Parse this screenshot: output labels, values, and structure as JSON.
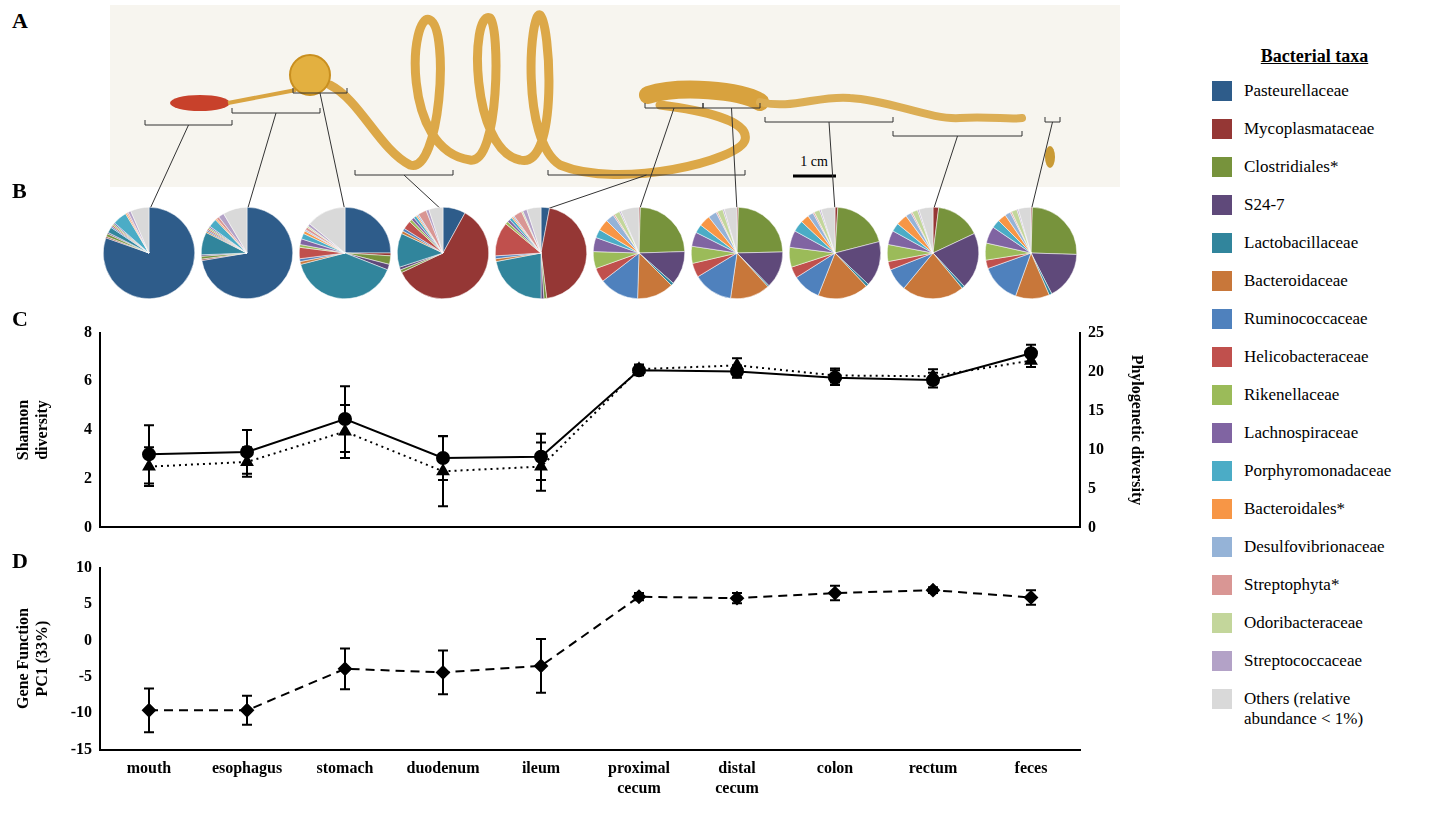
{
  "figure": {
    "panel_labels": [
      "A",
      "B",
      "C",
      "D"
    ],
    "scale_bar": "1 cm"
  },
  "chart_data": [
    {
      "type": "pie",
      "title": "Bacterial taxa",
      "legend": "right",
      "categories": [
        "Pasteurellaceae",
        "Mycoplasmataceae",
        "Clostridiales*",
        "S24-7",
        "Lactobacillaceae",
        "Bacteroidaceae",
        "Ruminococcaceae",
        "Helicobacteraceae",
        "Rikenellaceae",
        "Lachnospiraceae",
        "Porphyromonadaceae",
        "Bacteroidales*",
        "Desulfovibrionaceae",
        "Streptophyta*",
        "Odoribacteraceae",
        "Streptococcaceae",
        "Others (relative abundance < 1%)"
      ],
      "colors": [
        "#2e5c8a",
        "#953735",
        "#77933c",
        "#5f497a",
        "#31859c",
        "#c8773a",
        "#4f81bd",
        "#c0504d",
        "#9bbb59",
        "#8064a2",
        "#4bacc6",
        "#f79646",
        "#95b3d7",
        "#d99694",
        "#c3d69b",
        "#b3a2c7",
        "#d9d9d9"
      ],
      "series": [
        {
          "name": "mouth",
          "values": [
            80,
            0.5,
            1,
            0.5,
            2,
            0,
            0.5,
            0.5,
            0.5,
            0.5,
            5,
            0.5,
            0,
            0.5,
            0,
            1,
            6.5
          ]
        },
        {
          "name": "esophagus",
          "values": [
            72,
            0.5,
            1,
            0.5,
            8,
            0.5,
            0.5,
            0.5,
            0.5,
            0.5,
            3,
            0.5,
            0,
            1,
            0,
            2,
            8.5
          ]
        },
        {
          "name": "stomach",
          "values": [
            25,
            1,
            3,
            2,
            40,
            1,
            1,
            4,
            1,
            2,
            2,
            1,
            0.5,
            1,
            0.5,
            1,
            14
          ]
        },
        {
          "name": "duodenum",
          "values": [
            8,
            60,
            1,
            1,
            12,
            1,
            1,
            3,
            1,
            1,
            1,
            0.5,
            0.5,
            3,
            0,
            1,
            5
          ]
        },
        {
          "name": "ileum",
          "values": [
            3,
            45,
            1,
            1,
            22,
            1,
            1,
            12,
            1,
            1,
            1,
            0.5,
            0.5,
            3,
            0.5,
            1.5,
            5
          ]
        },
        {
          "name": "proximal cecum",
          "values": [
            0,
            0.5,
            24,
            12,
            1,
            13,
            14,
            5,
            6,
            5,
            3,
            4,
            3,
            0.5,
            2,
            0.5,
            6.5
          ]
        },
        {
          "name": "distal cecum",
          "values": [
            0,
            0.5,
            24,
            13,
            0.5,
            14,
            14,
            5,
            6,
            5,
            3,
            4,
            3,
            0.5,
            2,
            0.5,
            4.5
          ]
        },
        {
          "name": "colon",
          "values": [
            0,
            1,
            20,
            16,
            1,
            18,
            10,
            4,
            7,
            6,
            4,
            3,
            2,
            0.5,
            2,
            0.5,
            5
          ]
        },
        {
          "name": "rectum",
          "values": [
            0,
            2,
            16,
            20,
            1,
            22,
            8,
            3,
            6,
            5,
            3,
            4,
            2,
            0.5,
            2,
            0.5,
            5
          ]
        },
        {
          "name": "feces",
          "values": [
            0,
            0.5,
            25,
            17,
            1,
            12,
            14,
            3,
            6,
            6,
            3,
            3,
            2,
            0.5,
            2,
            0.5,
            4.5
          ]
        }
      ]
    },
    {
      "type": "line",
      "grid": false,
      "tick_labels": "y",
      "categories": [
        "mouth",
        "esophagus",
        "stomach",
        "duodenum",
        "ileum",
        "proximal cecum",
        "distal cecum",
        "colon",
        "rectum",
        "feces"
      ],
      "ylim": [
        0,
        8
      ],
      "yticks": [
        0,
        2,
        4,
        6,
        8
      ],
      "y2lim": [
        0,
        25
      ],
      "y2ticks": [
        0,
        5,
        10,
        15,
        20,
        25
      ],
      "series": [
        {
          "name": "Shannon diversity",
          "color": "#000000",
          "marker": "circle",
          "line_style": "solid",
          "values": [
            3.0,
            3.1,
            4.45,
            2.85,
            2.9,
            6.45,
            6.4,
            6.15,
            6.05,
            7.15
          ],
          "errors": [
            1.2,
            0.9,
            1.35,
            0.9,
            0.95,
            0.2,
            0.25,
            0.3,
            0.3,
            0.35
          ]
        },
        {
          "name": "Phylogenetic diversity",
          "axis": "y2",
          "color": "#000000",
          "marker": "triangle",
          "line_style": "dotted",
          "values": [
            7.8,
            8.4,
            12.3,
            7.2,
            7.8,
            20.3,
            20.8,
            19.5,
            19.4,
            21.4
          ],
          "errors": [
            2.5,
            1.9,
            3.4,
            4.5,
            3.1,
            0.6,
            0.9,
            0.9,
            0.9,
            0.8
          ]
        }
      ]
    },
    {
      "type": "line",
      "grid": false,
      "categories": [
        "mouth",
        "esophagus",
        "stomach",
        "duodenum",
        "ileum",
        "proximal cecum",
        "distal cecum",
        "colon",
        "rectum",
        "feces"
      ],
      "ylim": [
        -15,
        10
      ],
      "yticks": [
        -15,
        -10,
        -5,
        0,
        5,
        10
      ],
      "series": [
        {
          "name": "Gene Function PC1 (33%)",
          "color": "#000000",
          "marker": "diamond",
          "line_style": "dashed",
          "values": [
            -9.6,
            -9.6,
            -3.9,
            -4.4,
            -3.5,
            6.0,
            5.8,
            6.5,
            6.9,
            5.9
          ],
          "errors": [
            3.0,
            2.0,
            2.8,
            3.0,
            3.7,
            0.5,
            0.7,
            1.0,
            0.4,
            1.0
          ]
        }
      ]
    }
  ]
}
